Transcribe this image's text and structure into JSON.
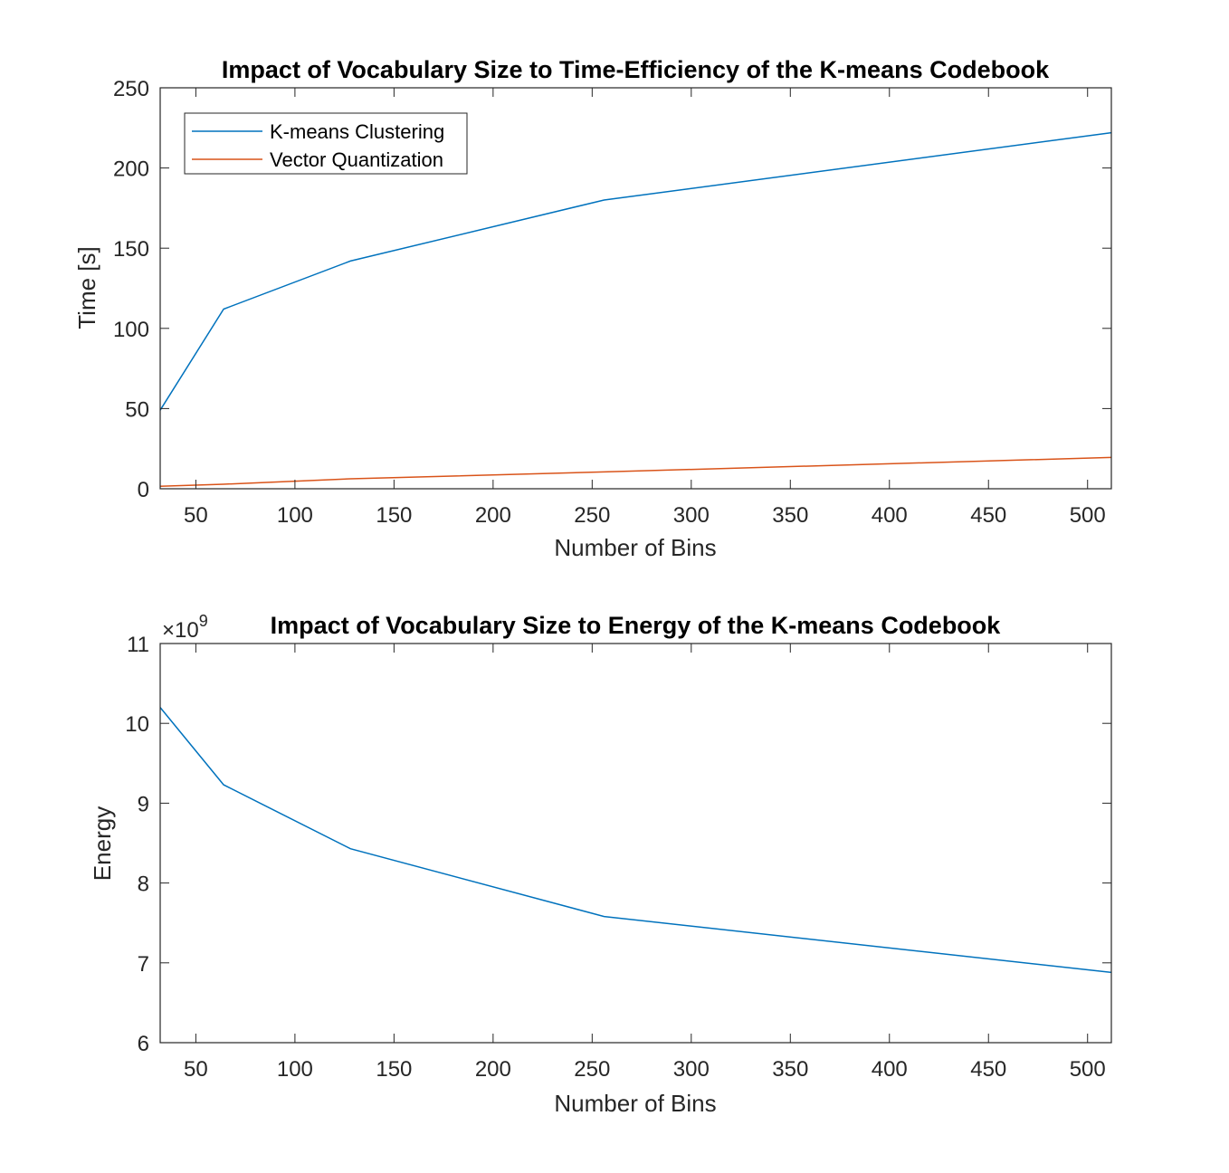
{
  "chart_data": [
    {
      "type": "line",
      "title": "Impact of Vocabulary Size to Time-Efficiency of the K-means Codebook",
      "xlabel": "Number of Bins",
      "ylabel": "Time [s]",
      "xlim": [
        32,
        512
      ],
      "ylim": [
        0,
        250
      ],
      "x": [
        32,
        64,
        128,
        256,
        512
      ],
      "xticks": [
        50,
        100,
        150,
        200,
        250,
        300,
        350,
        400,
        450,
        500
      ],
      "yticks": [
        0,
        50,
        100,
        150,
        200,
        250
      ],
      "grid": false,
      "legend_placement": "top-left",
      "series": [
        {
          "name": "K-means Clustering",
          "color": "#0072BD",
          "values": [
            49,
            112,
            142,
            180,
            222
          ]
        },
        {
          "name": "Vector Quantization",
          "color": "#D95319",
          "values": [
            1.5,
            2.8,
            6.2,
            10.5,
            19.5
          ]
        }
      ]
    },
    {
      "type": "line",
      "title": "Impact of Vocabulary Size to Energy of the K-means Codebook",
      "xlabel": "Number of Bins",
      "ylabel": "Energy",
      "axis_exponent_base": "×10",
      "axis_exponent_power": "9",
      "xlim": [
        32,
        512
      ],
      "ylim": [
        6,
        11
      ],
      "x": [
        32,
        64,
        128,
        256,
        512
      ],
      "xticks": [
        50,
        100,
        150,
        200,
        250,
        300,
        350,
        400,
        450,
        500
      ],
      "yticks": [
        6,
        7,
        8,
        9,
        10,
        11
      ],
      "grid": false,
      "series": [
        {
          "color": "#0072BD",
          "values": [
            10.2,
            9.23,
            8.43,
            7.58,
            6.88
          ]
        }
      ]
    }
  ]
}
